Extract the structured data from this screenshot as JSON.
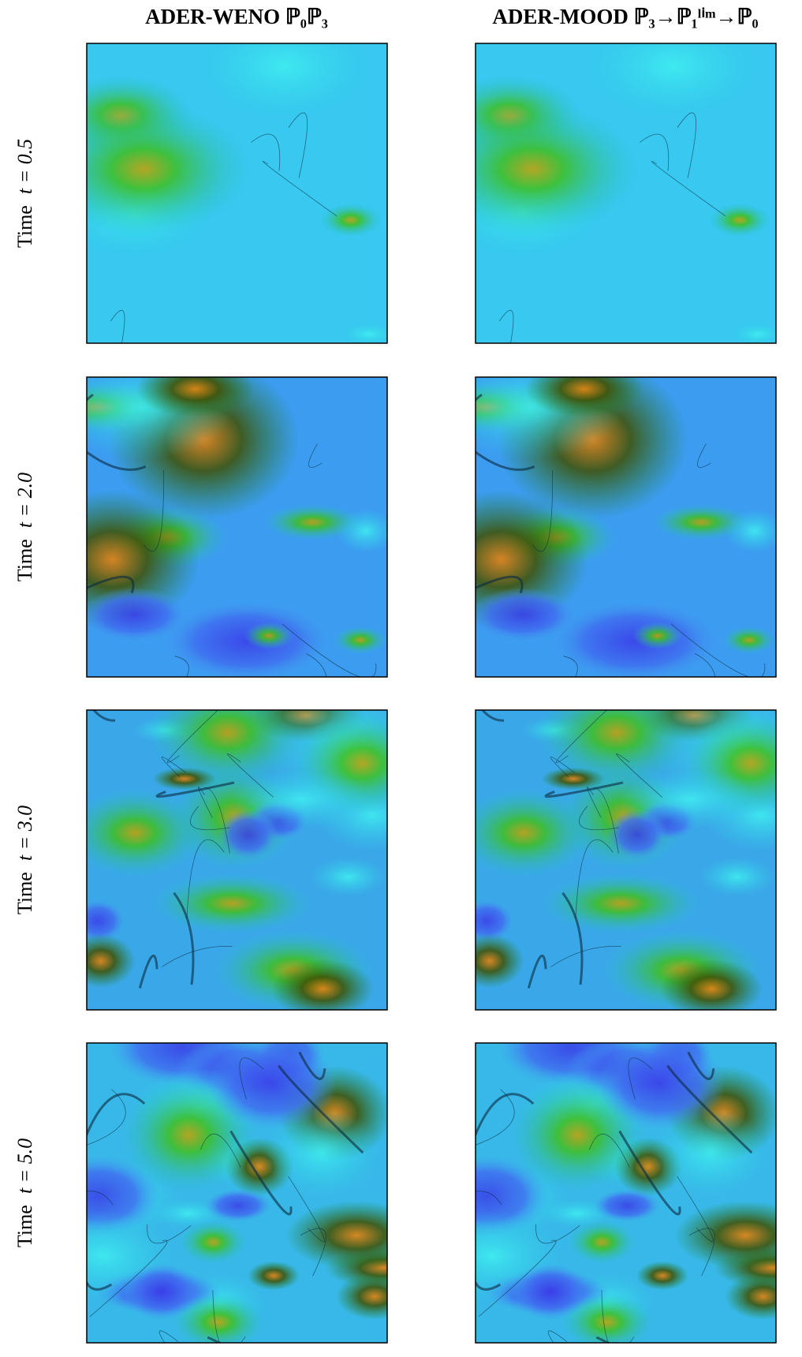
{
  "columns": [
    "ADER-WENO ℙ₀ℙ₃",
    "ADER-MOOD ℙ₃→ℙ₁ˡⁱᵐ→ℙ₀"
  ],
  "rows": [
    {
      "label": "Time",
      "time": "t = 0.5"
    },
    {
      "label": "Time",
      "time": "t = 2.0"
    },
    {
      "label": "Time",
      "time": "t = 3.0"
    },
    {
      "label": "Time",
      "time": "t = 5.0"
    }
  ]
}
